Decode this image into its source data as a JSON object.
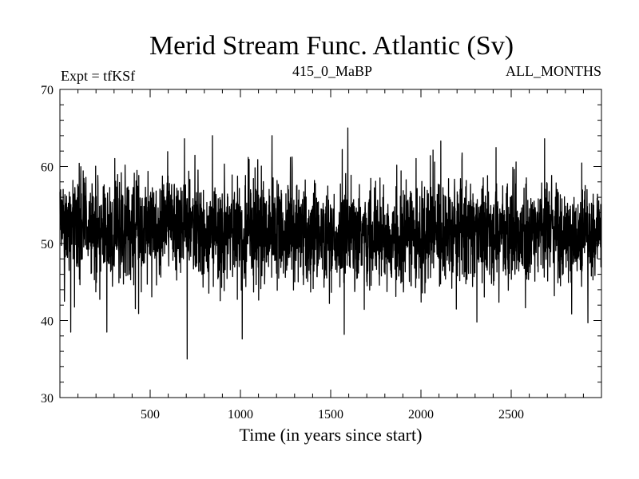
{
  "chart_data": {
    "type": "line",
    "title": "Merid Stream Func. Atlantic (Sv)",
    "subtitle_left": "Expt = tfKSf",
    "subtitle_center": "415_0_MaBP",
    "subtitle_right": "ALL_MONTHS",
    "xlabel": "Time (in years since start)",
    "ylabel": "",
    "xlim": [
      0,
      3000
    ],
    "ylim": [
      30,
      70
    ],
    "x_ticks": [
      500,
      1000,
      1500,
      2000,
      2500
    ],
    "y_ticks": [
      30,
      40,
      50,
      60,
      70
    ],
    "grid": false,
    "legend": "none",
    "series": [
      {
        "color": "#000000",
        "x_start": 0,
        "x_step": 1,
        "n_points": 3000,
        "mean": 51.5,
        "typical_range": [
          44,
          60
        ],
        "extremes": [
          {
            "x": 60,
            "y": 38.5
          },
          {
            "x": 260,
            "y": 38.5
          },
          {
            "x": 705,
            "y": 35.0
          },
          {
            "x": 1010,
            "y": 37.6
          },
          {
            "x": 1575,
            "y": 38.2
          },
          {
            "x": 2310,
            "y": 39.8
          },
          {
            "x": 2925,
            "y": 39.7
          },
          {
            "x": 1595,
            "y": 65.0
          },
          {
            "x": 845,
            "y": 64.0
          },
          {
            "x": 1175,
            "y": 64.0
          },
          {
            "x": 2685,
            "y": 63.6
          },
          {
            "x": 690,
            "y": 63.6
          },
          {
            "x": 2110,
            "y": 63.3
          }
        ]
      }
    ]
  }
}
